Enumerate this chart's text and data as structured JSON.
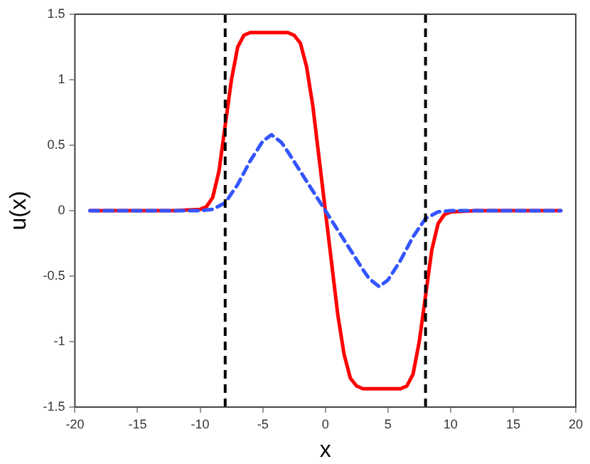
{
  "chart_data": {
    "type": "line",
    "xlabel": "x",
    "ylabel": "u(x)",
    "xlim": [
      -20,
      20
    ],
    "xticks": [
      -20,
      -15,
      -10,
      -5,
      0,
      5,
      10,
      15,
      20
    ],
    "ylim": [
      -1.5,
      1.5
    ],
    "yticks": [
      -1.5,
      -1,
      -0.5,
      0,
      0.5,
      1,
      1.5
    ],
    "grid": false,
    "legend": false,
    "marker": "none",
    "series": [
      {
        "color": "#ff0000",
        "line_style": "solid",
        "x": [
          -18.8,
          -12,
          -10,
          -9.5,
          -9,
          -8.5,
          -8,
          -7.5,
          -7,
          -6.5,
          -6,
          -3,
          -2.5,
          -2,
          -1.5,
          -1,
          -0.5,
          0,
          0.5,
          1,
          1.5,
          2,
          2.5,
          3,
          6,
          6.5,
          7,
          7.5,
          8,
          8.5,
          9,
          9.5,
          10,
          12,
          18.8
        ],
        "values": [
          0,
          0,
          0.01,
          0.03,
          0.1,
          0.3,
          0.65,
          1,
          1.25,
          1.34,
          1.36,
          1.36,
          1.34,
          1.28,
          1.1,
          0.8,
          0.4,
          0,
          -0.4,
          -0.8,
          -1.1,
          -1.28,
          -1.34,
          -1.36,
          -1.36,
          -1.34,
          -1.25,
          -1,
          -0.65,
          -0.3,
          -0.1,
          -0.03,
          -0.01,
          0,
          0
        ]
      },
      {
        "color": "#3355ff",
        "line_style": "dashed",
        "x": [
          -18.8,
          -10,
          -9,
          -8,
          -7,
          -6,
          -5,
          -4.3,
          -3.5,
          -3,
          -2,
          -1,
          0,
          1,
          2,
          3,
          3.5,
          4.3,
          5,
          6,
          7,
          8,
          9,
          10,
          18.8
        ],
        "values": [
          0,
          0,
          0.01,
          0.06,
          0.2,
          0.38,
          0.53,
          0.58,
          0.52,
          0.45,
          0.3,
          0.15,
          0,
          -0.15,
          -0.3,
          -0.45,
          -0.52,
          -0.58,
          -0.53,
          -0.38,
          -0.2,
          -0.06,
          -0.01,
          0,
          0
        ]
      }
    ],
    "ref_lines": [
      {
        "axis": "x",
        "value": -8,
        "color": "#000000",
        "line_style": "dashed"
      },
      {
        "axis": "x",
        "value": 8,
        "color": "#000000",
        "line_style": "dashed"
      }
    ]
  }
}
